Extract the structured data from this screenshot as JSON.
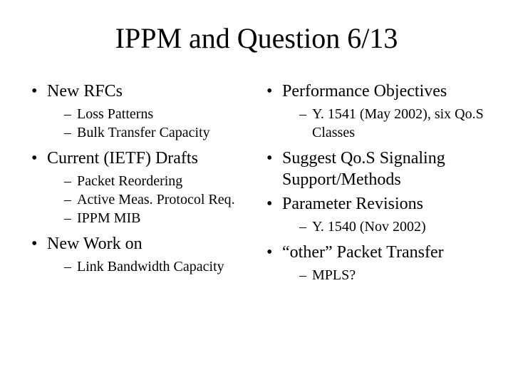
{
  "title": "IPPM and Question 6/13",
  "left": {
    "items": [
      {
        "label": "New RFCs",
        "sub": [
          "Loss Patterns",
          "Bulk Transfer Capacity"
        ]
      },
      {
        "label": "Current (IETF) Drafts",
        "sub": [
          "Packet Reordering",
          "Active Meas. Protocol Req.",
          "IPPM MIB"
        ]
      },
      {
        "label": "New Work on",
        "sub": [
          "Link Bandwidth Capacity"
        ]
      }
    ]
  },
  "right": {
    "items": [
      {
        "label": "Performance Objectives",
        "sub": [
          "Y. 1541 (May 2002), six Qo.S Classes"
        ]
      },
      {
        "label": "Suggest Qo.S Signaling Support/Methods",
        "sub": []
      },
      {
        "label": "Parameter Revisions",
        "sub": [
          "Y. 1540 (Nov 2002)"
        ]
      },
      {
        "label": "“other” Packet Transfer",
        "sub": [
          "MPLS?"
        ]
      }
    ]
  },
  "styling": {
    "background_color": "#ffffff",
    "text_color": "#000000",
    "title_fontsize": 40,
    "level1_fontsize": 24,
    "level2_fontsize": 20,
    "font_family": "Times New Roman"
  }
}
